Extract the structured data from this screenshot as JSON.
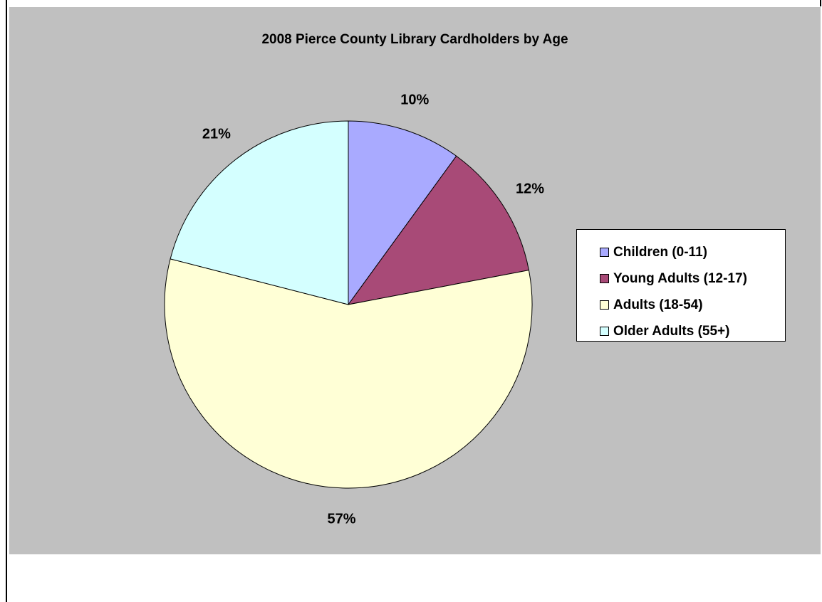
{
  "chart_data": {
    "type": "pie",
    "title": "2008 Pierce County Library Cardholders by Age",
    "categories": [
      "Children (0-11)",
      "Young Adults (12-17)",
      "Adults (18-54)",
      "Older Adults (55+)"
    ],
    "values": [
      10,
      12,
      57,
      21
    ],
    "data_labels": [
      "10%",
      "12%",
      "57%",
      "21%"
    ],
    "colors": [
      "#a9aaff",
      "#a84a77",
      "#ffffd6",
      "#d4ffff"
    ],
    "legend_position": "right",
    "background": "#c0c0c0"
  }
}
